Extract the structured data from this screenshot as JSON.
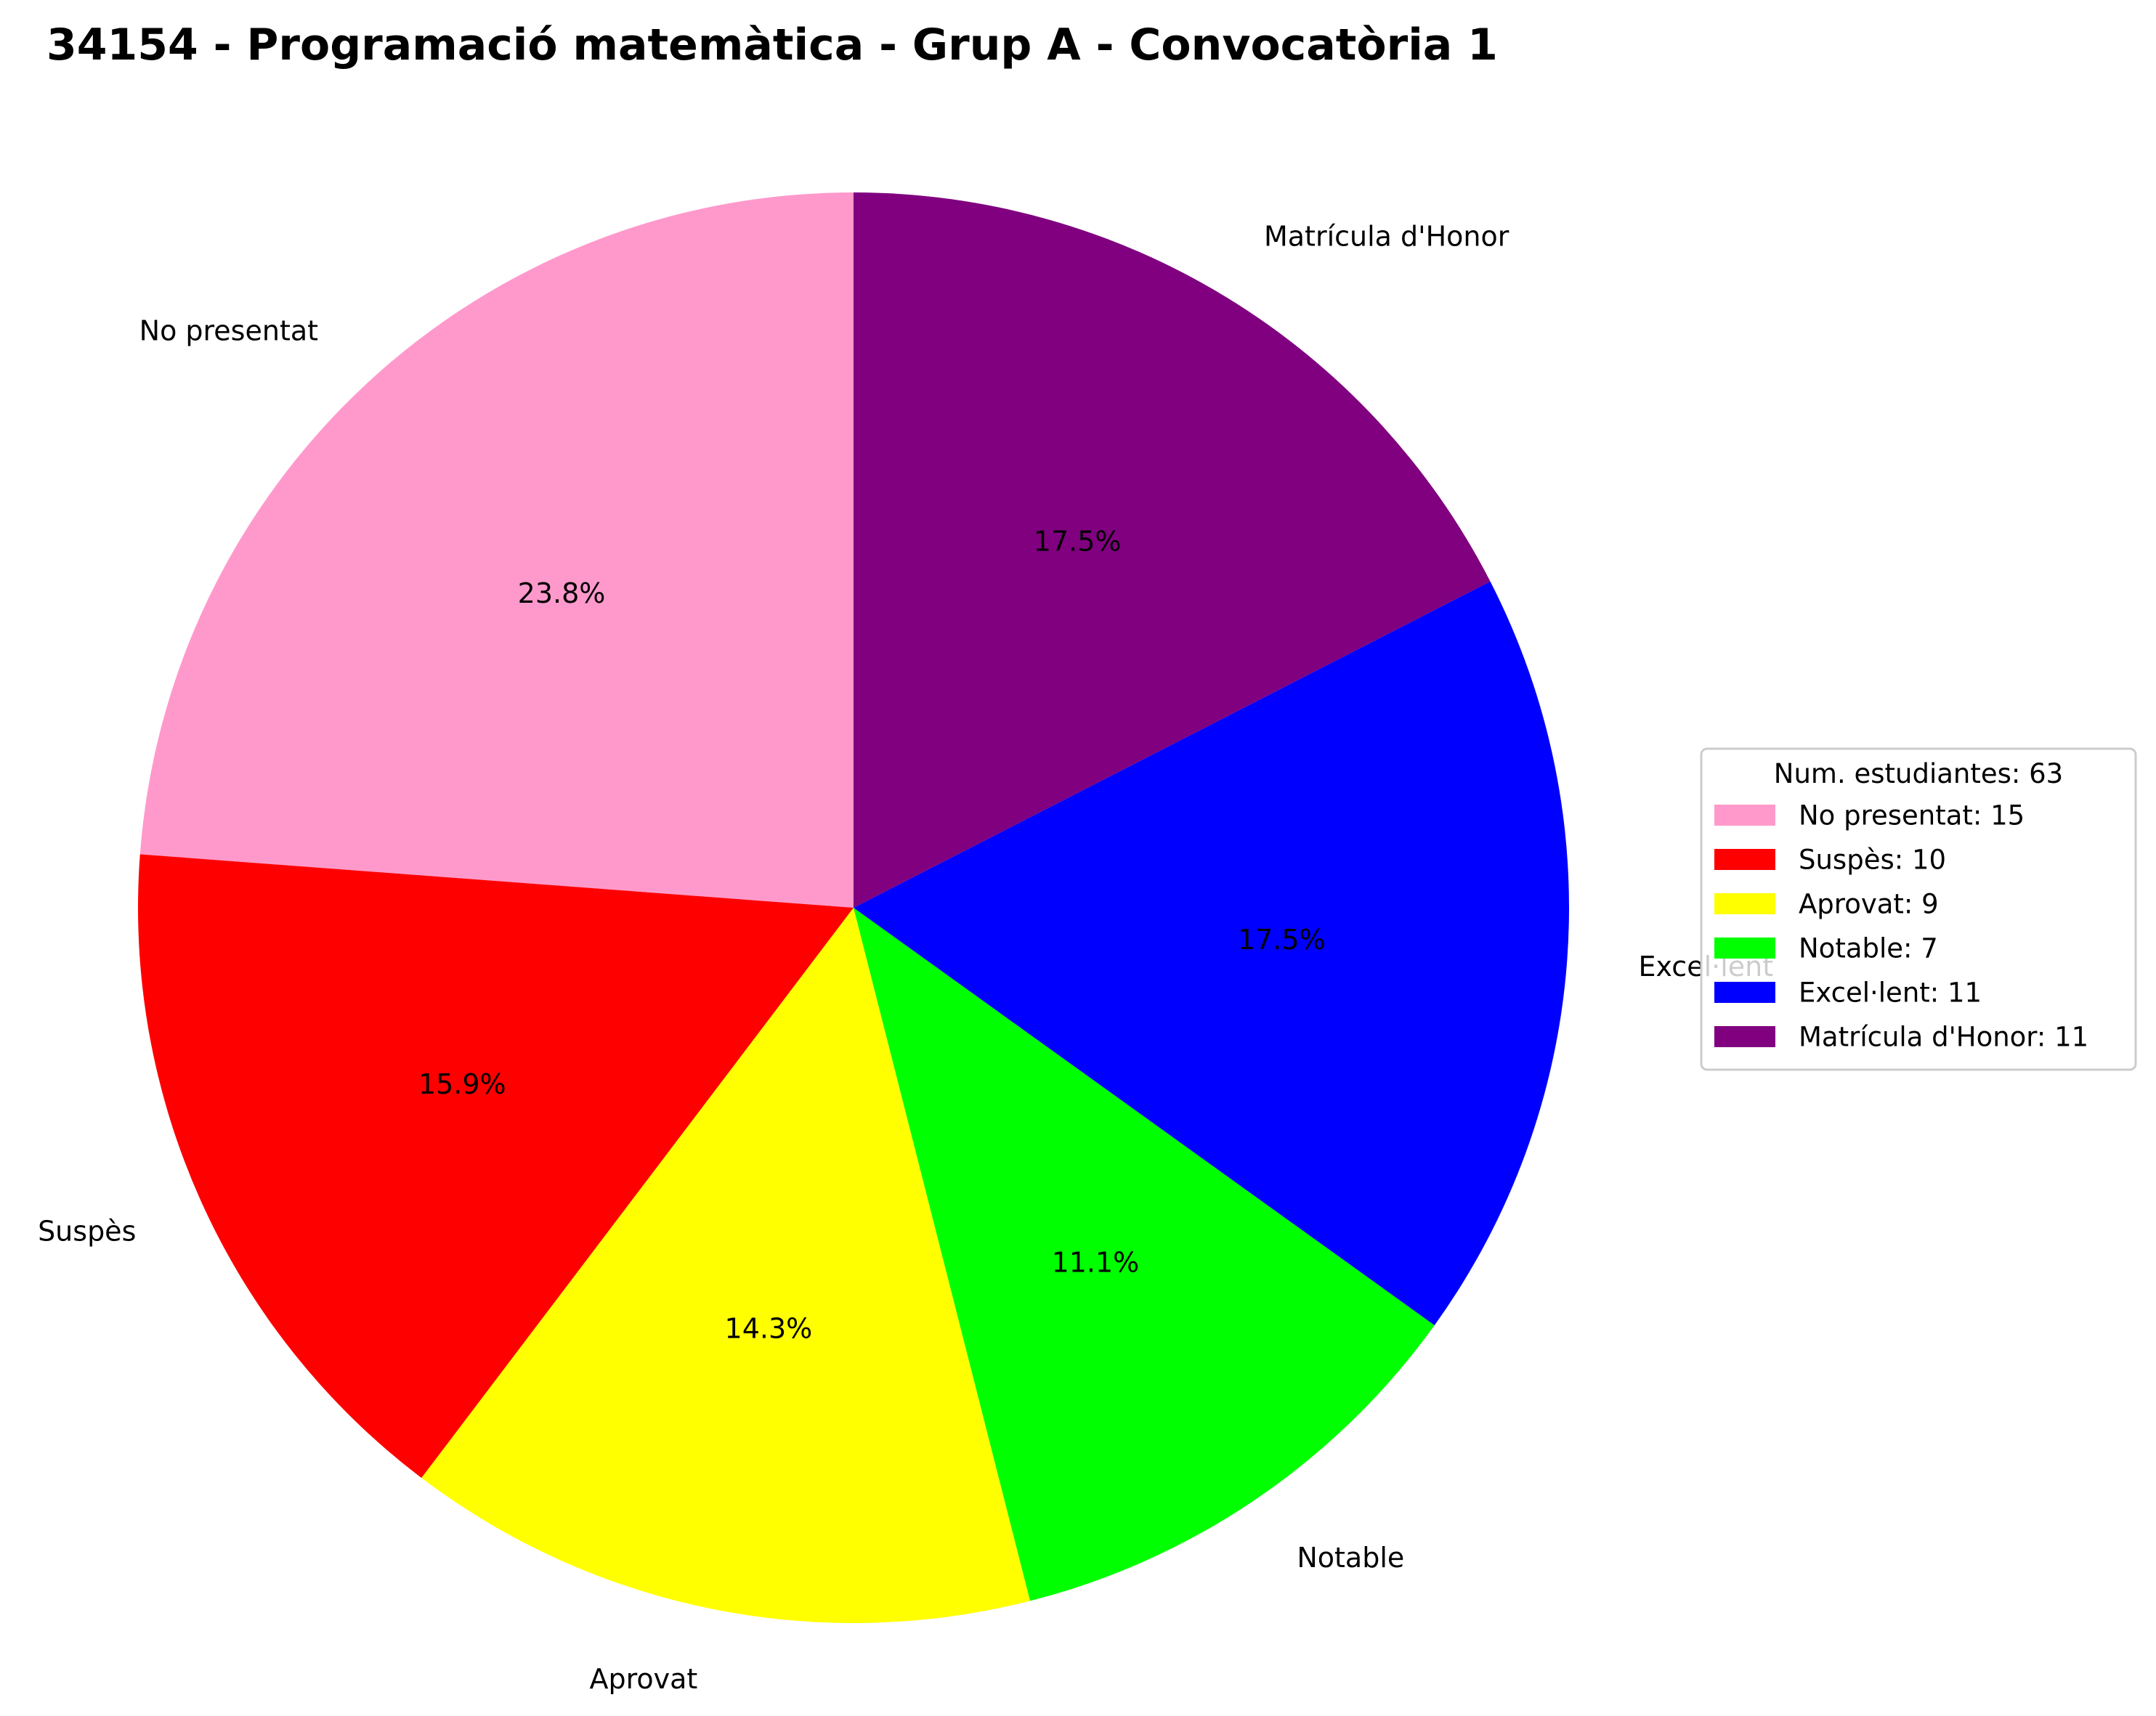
{
  "chart_data": {
    "type": "pie",
    "title": "34154 - Programació matemàtica - Grup A - Convocatòria 1",
    "start_angle_deg": 90,
    "direction": "counterclockwise",
    "slices": [
      {
        "label": "No presentat",
        "value": 15,
        "pct_label": "23.8%",
        "color": "#ff99cc"
      },
      {
        "label": "Suspès",
        "value": 10,
        "pct_label": "15.9%",
        "color": "#ff0000"
      },
      {
        "label": "Aprovat",
        "value": 9,
        "pct_label": "14.3%",
        "color": "#ffff00"
      },
      {
        "label": "Notable",
        "value": 7,
        "pct_label": "11.1%",
        "color": "#00ff00"
      },
      {
        "label": "Excel·lent",
        "value": 11,
        "pct_label": "17.5%",
        "color": "#0000ff"
      },
      {
        "label": "Matrícula d'Honor",
        "value": 11,
        "pct_label": "17.5%",
        "color": "#800080"
      }
    ],
    "legend": {
      "title": "Num. estudiantes: 63",
      "placement": "right",
      "entries": [
        "No presentat: 15",
        "Suspès: 10",
        "Aprovat: 9",
        "Notable: 7",
        "Excel·lent: 11",
        "Matrícula d'Honor: 11"
      ]
    }
  }
}
